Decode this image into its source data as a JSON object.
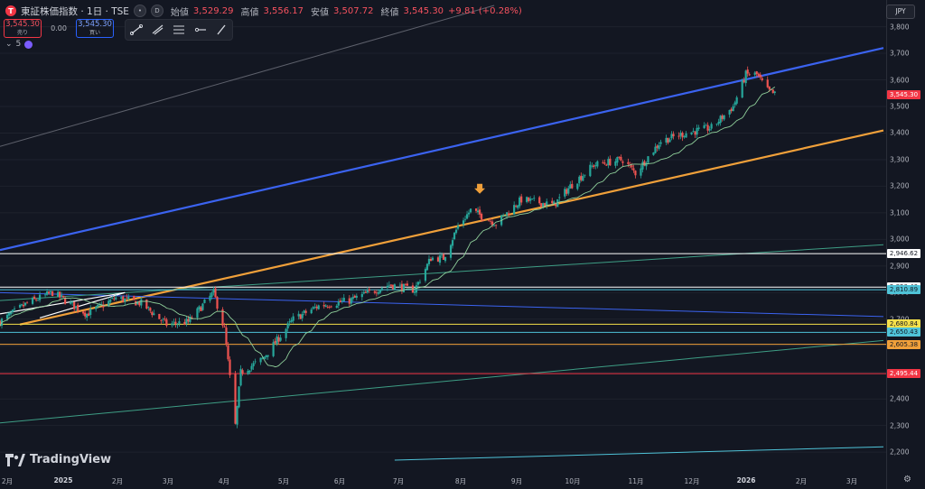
{
  "header": {
    "symbol_icon": "T",
    "title": "東証株価指数 · 1日 · TSE",
    "d_icon": "D",
    "open_label": "始値",
    "open": "3,529.29",
    "high_label": "高値",
    "high": "3,556.17",
    "low_label": "安値",
    "low": "3,507.72",
    "close_label": "終値",
    "close": "3,545.30",
    "change": "+9.81 (+0.28%)"
  },
  "trade": {
    "sell_price": "3,545.30",
    "sell_label": "売り",
    "spread": "0.00",
    "buy_price": "3,545.30",
    "buy_label": "買い"
  },
  "indicator": {
    "chevron": "⌄",
    "label": "5"
  },
  "toolbar_icons": [
    "trend-line-icon",
    "ray-icon",
    "fib-icon",
    "horizontal-ray-icon",
    "pen-icon"
  ],
  "currency": "JPY",
  "brand": "TradingView",
  "colors": {
    "bg": "#131722",
    "up": "#26a69a",
    "down": "#ef5350",
    "blue": "#3b63f0",
    "orange": "#f0a03a",
    "teal": "#3e9e85",
    "ma": "#8fcf9a"
  },
  "chart_data": {
    "type": "candlestick",
    "ylim": [
      2170,
      3880
    ],
    "y_ticks": [
      3800,
      3700,
      3600,
      3500,
      3400,
      3300,
      3200,
      3100,
      3000,
      2900,
      2800,
      2700,
      2600,
      2500,
      2400,
      2300,
      2200
    ],
    "x_ticks": [
      "2月",
      "2025",
      "2月",
      "3月",
      "4月",
      "5月",
      "6月",
      "7月",
      "8月",
      "9月",
      "10月",
      "11月",
      "12月",
      "2026",
      "2月",
      "3月"
    ],
    "x_ticks_bold": [
      "2025",
      "2026"
    ],
    "close_path": [
      [
        "2024-11-28",
        2690
      ],
      [
        "2024-12-13",
        2760
      ],
      [
        "2024-12-27",
        2800
      ],
      [
        "2025-01-15",
        2720
      ],
      [
        "2025-01-31",
        2780
      ],
      [
        "2025-02-14",
        2760
      ],
      [
        "2025-02-28",
        2680
      ],
      [
        "2025-03-12",
        2690
      ],
      [
        "2025-03-26",
        2800
      ],
      [
        "2025-04-01",
        2660
      ],
      [
        "2025-04-07",
        2300
      ],
      [
        "2025-04-10",
        2500
      ],
      [
        "2025-04-22",
        2550
      ],
      [
        "2025-05-09",
        2700
      ],
      [
        "2025-05-23",
        2750
      ],
      [
        "2025-06-09",
        2770
      ],
      [
        "2025-06-20",
        2800
      ],
      [
        "2025-07-01",
        2830
      ],
      [
        "2025-07-15",
        2810
      ],
      [
        "2025-07-24",
        2930
      ],
      [
        "2025-07-31",
        2930
      ],
      [
        "2025-08-08",
        3050
      ],
      [
        "2025-08-15",
        3110
      ],
      [
        "2025-08-29",
        3060
      ],
      [
        "2025-09-12",
        3150
      ],
      [
        "2025-09-30",
        3130
      ],
      [
        "2025-10-09",
        3200
      ],
      [
        "2025-10-22",
        3280
      ],
      [
        "2025-11-07",
        3300
      ],
      [
        "2025-11-14",
        3250
      ],
      [
        "2025-11-28",
        3370
      ],
      [
        "2025-12-12",
        3400
      ],
      [
        "2025-12-26",
        3420
      ],
      [
        "2026-01-07",
        3500
      ],
      [
        "2026-01-14",
        3620
      ],
      [
        "2026-01-20",
        3620
      ],
      [
        "2026-01-26",
        3560
      ],
      [
        "2026-01-30",
        3545
      ]
    ],
    "ma_period": 5,
    "price_labels": [
      {
        "value": 3545.3,
        "text": "3,545.30",
        "bg": "#f23645",
        "fg": "#ffffff"
      },
      {
        "value": 2946.62,
        "text": "2,946.62",
        "bg": "#ffffff",
        "fg": "#131722"
      },
      {
        "value": 2820.4,
        "text": "2,820.40",
        "bg": "#ffffff",
        "fg": "#131722"
      },
      {
        "value": 2810.89,
        "text": "2,810.89",
        "bg": "#4fc3d8",
        "fg": "#131722"
      },
      {
        "value": 2680.84,
        "text": "2,680.84",
        "bg": "#f5e04a",
        "fg": "#131722"
      },
      {
        "value": 2650.43,
        "text": "2,650.43",
        "bg": "#4fc3d8",
        "fg": "#131722"
      },
      {
        "value": 2605.38,
        "text": "2,605.38",
        "bg": "#f0a03a",
        "fg": "#131722"
      },
      {
        "value": 2495.44,
        "text": "2,495.44",
        "bg": "#f23645",
        "fg": "#ffffff"
      }
    ],
    "horizontal_lines": [
      {
        "value": 2946.62,
        "color": "#ffffff"
      },
      {
        "value": 2820.4,
        "color": "#ffffff"
      },
      {
        "value": 2810.89,
        "color": "#4fc3d8"
      },
      {
        "value": 2680.84,
        "color": "#f5e04a"
      },
      {
        "value": 2650.43,
        "color": "#4fc3d8"
      },
      {
        "value": 2605.38,
        "color": "#f0a03a"
      },
      {
        "value": 2495.44,
        "color": "#f23645"
      }
    ],
    "trend_lines": [
      {
        "name": "blue-channel-top",
        "color": "#3b63f0",
        "width": 2.2,
        "from": [
          "2024-11-28",
          2960
        ],
        "to": [
          "2026-03-31",
          3720
        ]
      },
      {
        "name": "orange-channel",
        "color": "#f0a03a",
        "width": 2.2,
        "from": [
          "2024-12-09",
          2680
        ],
        "to": [
          "2026-03-31",
          3410
        ]
      },
      {
        "name": "blue-down",
        "color": "#3b63f0",
        "width": 1,
        "from": [
          "2024-11-28",
          2800
        ],
        "to": [
          "2026-03-31",
          2710
        ]
      },
      {
        "name": "teal-mid",
        "color": "#3e9e85",
        "width": 1,
        "from": [
          "2024-11-28",
          2770
        ],
        "to": [
          "2026-03-31",
          2980
        ]
      },
      {
        "name": "teal-low",
        "color": "#3e9e85",
        "width": 1,
        "from": [
          "2024-11-28",
          2310
        ],
        "to": [
          "2026-03-31",
          2620
        ]
      },
      {
        "name": "cyan-bottom",
        "color": "#4fc3d8",
        "width": 1,
        "from": [
          "2025-07-04",
          2170
        ],
        "to": [
          "2026-03-31",
          2220
        ]
      },
      {
        "name": "gray-top",
        "color": "#5d606b",
        "width": 1,
        "from": [
          "2024-11-28",
          3350
        ],
        "to": [
          "2025-08-28",
          3880
        ]
      },
      {
        "name": "white-1",
        "color": "#ffffff",
        "width": 1.2,
        "from": [
          "2024-11-28",
          2720
        ],
        "to": [
          "2025-02-05",
          2800
        ]
      },
      {
        "name": "white-2",
        "color": "#ffffff",
        "width": 1.2,
        "from": [
          "2024-12-20",
          2705
        ],
        "to": [
          "2025-02-05",
          2800
        ]
      }
    ],
    "marker": {
      "date": "2025-08-20",
      "value": 3175,
      "color": "#f0a03a"
    }
  }
}
